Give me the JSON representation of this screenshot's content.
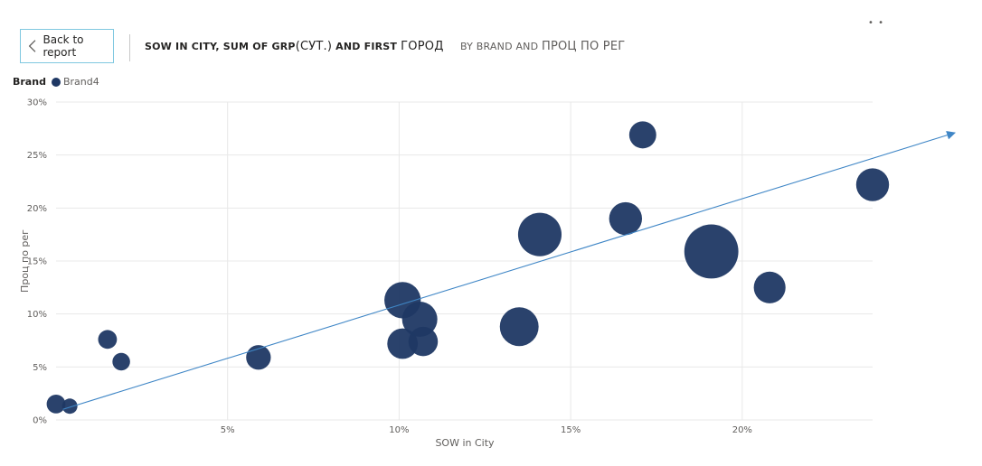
{
  "header": {
    "back_label": "Back to report",
    "title_part1": "SOW IN CITY, SUM OF GRP",
    "title_part2": "(СУТ.)",
    "title_part3": " AND FIRST ",
    "title_part4": "ГОРОД",
    "title_part5": "BY BRAND AND ",
    "title_part6": "ПРОЦ ПО РЕГ",
    "more_glyph": "• •"
  },
  "legend": {
    "title": "Brand",
    "items": [
      {
        "label": "Brand4",
        "color": "#1f3864"
      }
    ]
  },
  "colors": {
    "bubble": "#1f3864",
    "trend": "#3f86c6",
    "grid": "#e8e8e8"
  },
  "chart_data": {
    "type": "scatter",
    "xlabel": "SOW in City",
    "ylabel": "Проц по рег",
    "xlim": [
      0,
      0.238
    ],
    "ylim": [
      0,
      0.3
    ],
    "x_ticks": [
      {
        "value": 0.05,
        "label": "5%"
      },
      {
        "value": 0.1,
        "label": "10%"
      },
      {
        "value": 0.15,
        "label": "15%"
      },
      {
        "value": 0.2,
        "label": "20%"
      }
    ],
    "y_ticks": [
      {
        "value": 0.0,
        "label": "0%"
      },
      {
        "value": 0.05,
        "label": "5%"
      },
      {
        "value": 0.1,
        "label": "10%"
      },
      {
        "value": 0.15,
        "label": "15%"
      },
      {
        "value": 0.2,
        "label": "20%"
      },
      {
        "value": 0.25,
        "label": "25%"
      },
      {
        "value": 0.3,
        "label": "30%"
      }
    ],
    "grid": true,
    "legend_position": "top-left",
    "series": [
      {
        "name": "Brand4",
        "points": [
          {
            "x": 0.0,
            "y": 0.015,
            "size": 1.6
          },
          {
            "x": 0.004,
            "y": 0.013,
            "size": 1.3
          },
          {
            "x": 0.015,
            "y": 0.076,
            "size": 1.6
          },
          {
            "x": 0.019,
            "y": 0.055,
            "size": 1.5
          },
          {
            "x": 0.059,
            "y": 0.059,
            "size": 2.1
          },
          {
            "x": 0.101,
            "y": 0.113,
            "size": 3.1
          },
          {
            "x": 0.101,
            "y": 0.072,
            "size": 2.6
          },
          {
            "x": 0.106,
            "y": 0.095,
            "size": 3.0
          },
          {
            "x": 0.107,
            "y": 0.074,
            "size": 2.5
          },
          {
            "x": 0.135,
            "y": 0.088,
            "size": 3.3
          },
          {
            "x": 0.141,
            "y": 0.175,
            "size": 3.7
          },
          {
            "x": 0.166,
            "y": 0.19,
            "size": 2.8
          },
          {
            "x": 0.171,
            "y": 0.269,
            "size": 2.3
          },
          {
            "x": 0.191,
            "y": 0.159,
            "size": 4.6
          },
          {
            "x": 0.208,
            "y": 0.125,
            "size": 2.7
          },
          {
            "x": 0.238,
            "y": 0.222,
            "size": 2.8
          }
        ]
      }
    ],
    "trendline": {
      "x1": 0.002,
      "y1": 0.01,
      "x2": 0.262,
      "y2": 0.271
    }
  }
}
